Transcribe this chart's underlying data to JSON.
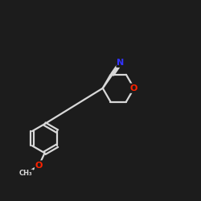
{
  "background_color": "#1c1c1c",
  "line_color": "#d8d8d8",
  "atom_colors": {
    "N": "#3333ff",
    "O": "#ff2200"
  },
  "bond_width": 1.6,
  "font_size": 8.5
}
